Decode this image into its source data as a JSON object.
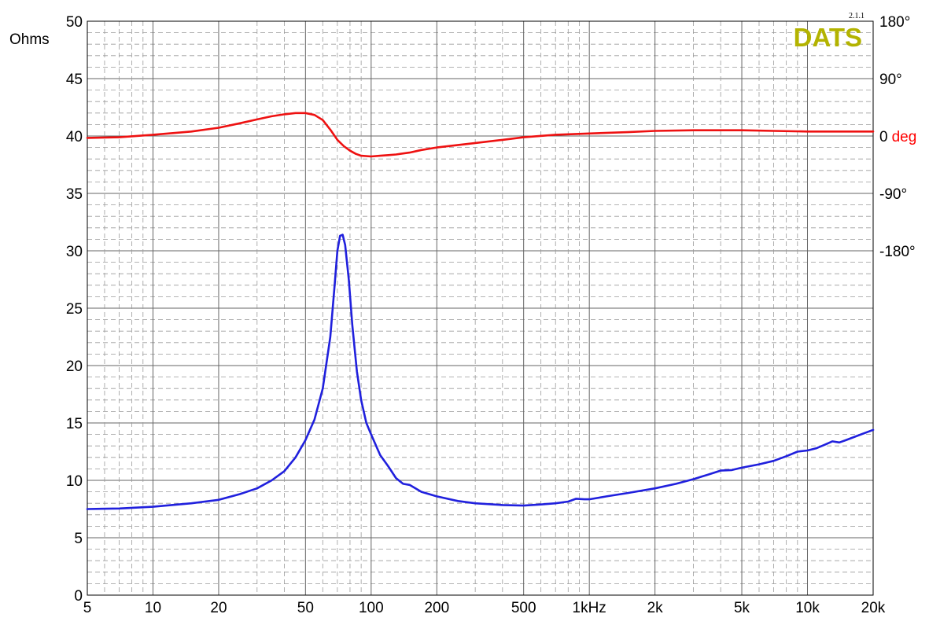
{
  "chart_data": {
    "type": "line",
    "branding": {
      "logo_text": "DATS",
      "version": "2.1.1",
      "logo_color": "#b3b300"
    },
    "axes": {
      "x": {
        "scale": "log",
        "range": [
          5,
          20000
        ],
        "ticks": [
          {
            "value": 5,
            "label": "5"
          },
          {
            "value": 10,
            "label": "10"
          },
          {
            "value": 20,
            "label": "20"
          },
          {
            "value": 50,
            "label": "50"
          },
          {
            "value": 100,
            "label": "100"
          },
          {
            "value": 200,
            "label": "200"
          },
          {
            "value": 500,
            "label": "500"
          },
          {
            "value": 1000,
            "label": "1kHz"
          },
          {
            "value": 2000,
            "label": "2k"
          },
          {
            "value": 5000,
            "label": "5k"
          },
          {
            "value": 10000,
            "label": "10k"
          },
          {
            "value": 20000,
            "label": "20k"
          }
        ]
      },
      "y_left": {
        "label": "Ohms",
        "label_color": "#3333ff",
        "range": [
          0,
          50
        ],
        "ticks": [
          0,
          5,
          10,
          15,
          20,
          25,
          30,
          35,
          40,
          45,
          50
        ]
      },
      "y_right": {
        "unit_label": "deg",
        "unit_color": "#ff0000",
        "range": [
          -720,
          180
        ],
        "ticks": [
          {
            "value": 180,
            "label": "180°"
          },
          {
            "value": 90,
            "label": "90°"
          },
          {
            "value": 0,
            "label": "0"
          },
          {
            "value": -90,
            "label": "-90°"
          },
          {
            "value": -180,
            "label": "-180°"
          }
        ]
      }
    },
    "grid": true,
    "series": [
      {
        "axis": "left",
        "color": "#2020dd",
        "points": [
          [
            5,
            7.5
          ],
          [
            7,
            7.55
          ],
          [
            10,
            7.7
          ],
          [
            15,
            8.0
          ],
          [
            20,
            8.3
          ],
          [
            25,
            8.8
          ],
          [
            30,
            9.3
          ],
          [
            35,
            10.0
          ],
          [
            40,
            10.8
          ],
          [
            45,
            12.0
          ],
          [
            50,
            13.5
          ],
          [
            55,
            15.3
          ],
          [
            60,
            18.0
          ],
          [
            65,
            22.5
          ],
          [
            68,
            27.0
          ],
          [
            70,
            30.0
          ],
          [
            72,
            31.3
          ],
          [
            74,
            31.4
          ],
          [
            76,
            30.5
          ],
          [
            79,
            27.5
          ],
          [
            82,
            23.5
          ],
          [
            86,
            19.5
          ],
          [
            90,
            17.0
          ],
          [
            95,
            15.0
          ],
          [
            100,
            14.0
          ],
          [
            110,
            12.2
          ],
          [
            120,
            11.2
          ],
          [
            130,
            10.2
          ],
          [
            140,
            9.7
          ],
          [
            150,
            9.6
          ],
          [
            170,
            9.0
          ],
          [
            200,
            8.6
          ],
          [
            250,
            8.2
          ],
          [
            300,
            8.0
          ],
          [
            400,
            7.85
          ],
          [
            500,
            7.8
          ],
          [
            600,
            7.9
          ],
          [
            700,
            8.0
          ],
          [
            800,
            8.15
          ],
          [
            870,
            8.4
          ],
          [
            950,
            8.35
          ],
          [
            1000,
            8.35
          ],
          [
            1200,
            8.6
          ],
          [
            1500,
            8.9
          ],
          [
            2000,
            9.3
          ],
          [
            2500,
            9.7
          ],
          [
            3000,
            10.1
          ],
          [
            3500,
            10.5
          ],
          [
            4000,
            10.85
          ],
          [
            4500,
            10.9
          ],
          [
            5000,
            11.1
          ],
          [
            6000,
            11.4
          ],
          [
            7000,
            11.7
          ],
          [
            8000,
            12.1
          ],
          [
            9000,
            12.5
          ],
          [
            10000,
            12.6
          ],
          [
            11000,
            12.8
          ],
          [
            12000,
            13.1
          ],
          [
            13000,
            13.4
          ],
          [
            14000,
            13.3
          ],
          [
            15000,
            13.5
          ],
          [
            17000,
            13.9
          ],
          [
            20000,
            14.4
          ]
        ]
      },
      {
        "axis": "right",
        "color": "#ee1111",
        "points": [
          [
            5,
            -3
          ],
          [
            7,
            -2
          ],
          [
            10,
            2
          ],
          [
            15,
            7
          ],
          [
            20,
            13
          ],
          [
            25,
            20
          ],
          [
            30,
            26
          ],
          [
            35,
            31
          ],
          [
            40,
            34
          ],
          [
            45,
            36
          ],
          [
            50,
            36
          ],
          [
            55,
            33
          ],
          [
            60,
            25
          ],
          [
            65,
            10
          ],
          [
            70,
            -6
          ],
          [
            75,
            -16
          ],
          [
            80,
            -23
          ],
          [
            85,
            -28
          ],
          [
            90,
            -31
          ],
          [
            100,
            -32
          ],
          [
            110,
            -31
          ],
          [
            120,
            -30
          ],
          [
            130,
            -29
          ],
          [
            150,
            -26
          ],
          [
            170,
            -22
          ],
          [
            200,
            -18
          ],
          [
            300,
            -11
          ],
          [
            400,
            -6
          ],
          [
            500,
            -2
          ],
          [
            700,
            2
          ],
          [
            1000,
            4
          ],
          [
            1500,
            6
          ],
          [
            2000,
            8
          ],
          [
            3000,
            9
          ],
          [
            4000,
            9
          ],
          [
            5000,
            9
          ],
          [
            7000,
            8
          ],
          [
            10000,
            7
          ],
          [
            12000,
            7
          ],
          [
            15000,
            7
          ],
          [
            20000,
            7
          ]
        ]
      }
    ]
  }
}
